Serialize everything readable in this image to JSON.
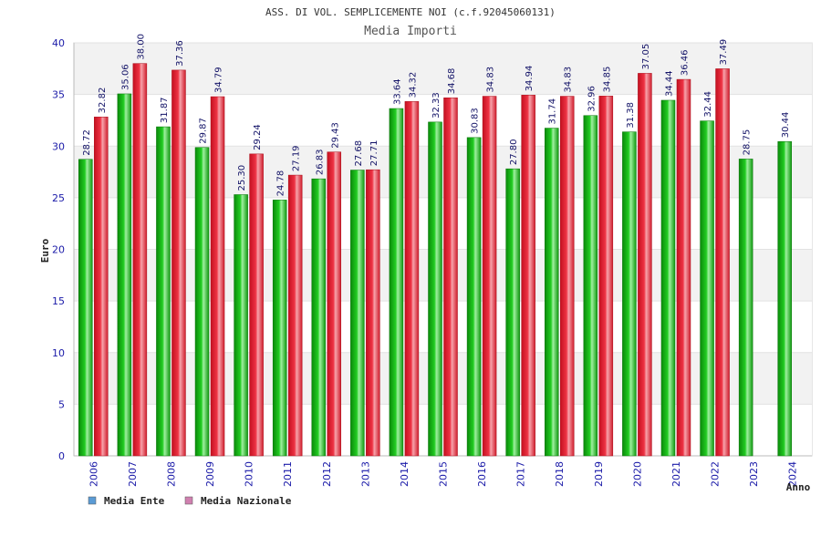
{
  "chart_data": {
    "type": "bar",
    "title": "ASS. DI VOL. SEMPLICEMENTE NOI (c.f.92045060131)",
    "subtitle": "Media Importi",
    "xlabel": "Anno",
    "ylabel": "Euro",
    "ylim": [
      0,
      40
    ],
    "yticks": [
      0,
      5,
      10,
      15,
      20,
      25,
      30,
      35,
      40
    ],
    "grid": true,
    "legend_position": "bottom-left",
    "categories": [
      "2006",
      "2007",
      "2008",
      "2009",
      "2010",
      "2011",
      "2012",
      "2013",
      "2014",
      "2015",
      "2016",
      "2017",
      "2018",
      "2019",
      "2020",
      "2021",
      "2022",
      "2023",
      "2024"
    ],
    "series": [
      {
        "name": "Media Ente",
        "legend_color": "#5b9bd5",
        "color": "#17b817",
        "values": [
          28.72,
          35.06,
          31.87,
          29.87,
          25.3,
          24.78,
          26.83,
          27.68,
          33.64,
          32.33,
          30.83,
          27.8,
          31.74,
          32.96,
          31.38,
          34.44,
          32.44,
          28.75,
          30.44
        ],
        "labels": [
          "28.72",
          "35.06",
          "31.87",
          "29.87",
          "25.30",
          "24.78",
          "26.83",
          "27.68",
          "33.64",
          "32.33",
          "30.83",
          "27.80",
          "31.74",
          "32.96",
          "31.38",
          "34.44",
          "32.44",
          "28.75",
          "30.44"
        ]
      },
      {
        "name": "Media Nazionale",
        "legend_color": "#d080b0",
        "color": "#e52a3a",
        "values": [
          32.82,
          38.0,
          37.36,
          34.79,
          29.24,
          27.19,
          29.43,
          27.71,
          34.32,
          34.68,
          34.83,
          34.94,
          34.83,
          34.85,
          37.05,
          36.46,
          37.49,
          null,
          null
        ],
        "labels": [
          "32.82",
          "38.00",
          "37.36",
          "34.79",
          "29.24",
          "27.19",
          "29.43",
          "27.71",
          "34.32",
          "34.68",
          "34.83",
          "34.94",
          "34.83",
          "34.85",
          "37.05",
          "36.46",
          "37.49",
          null,
          null
        ]
      }
    ]
  }
}
